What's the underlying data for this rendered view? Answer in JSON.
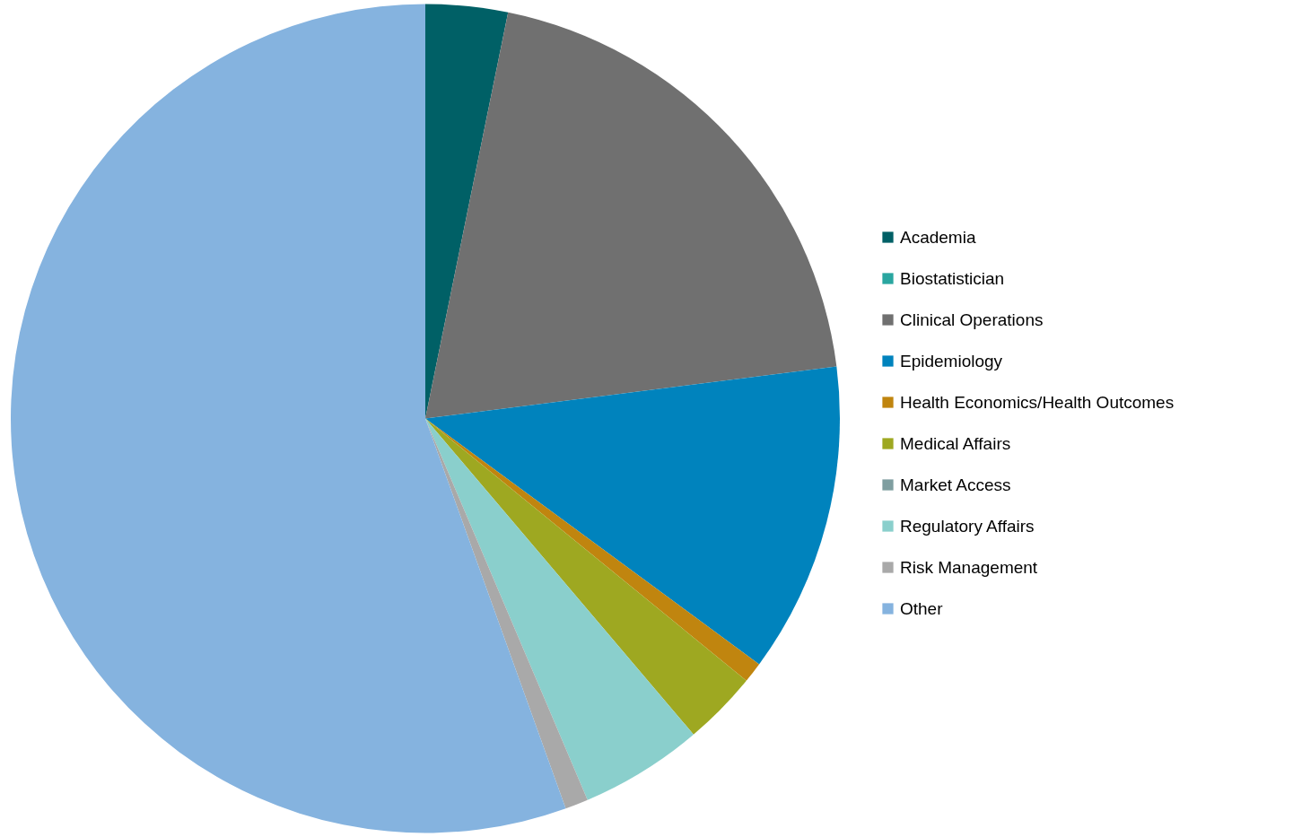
{
  "chart_data": {
    "type": "pie",
    "categories": [
      "Academia",
      "Biostatistician",
      "Clinical Operations",
      "Epidemiology",
      "Health Economics/Health Outcomes",
      "Medical Affairs",
      "Market Access",
      "Regulatory Affairs",
      "Risk Management",
      "Other"
    ],
    "values": [
      3.2,
      0,
      19.8,
      12.1,
      0.8,
      2.9,
      0,
      4.8,
      0.9,
      55.5
    ],
    "colors": [
      "#006066",
      "#2aa6a0",
      "#707070",
      "#0083bd",
      "#c0850f",
      "#9ea821",
      "#7f9ea0",
      "#8acfcc",
      "#a9a9a9",
      "#85b3df"
    ],
    "legend": "right"
  }
}
